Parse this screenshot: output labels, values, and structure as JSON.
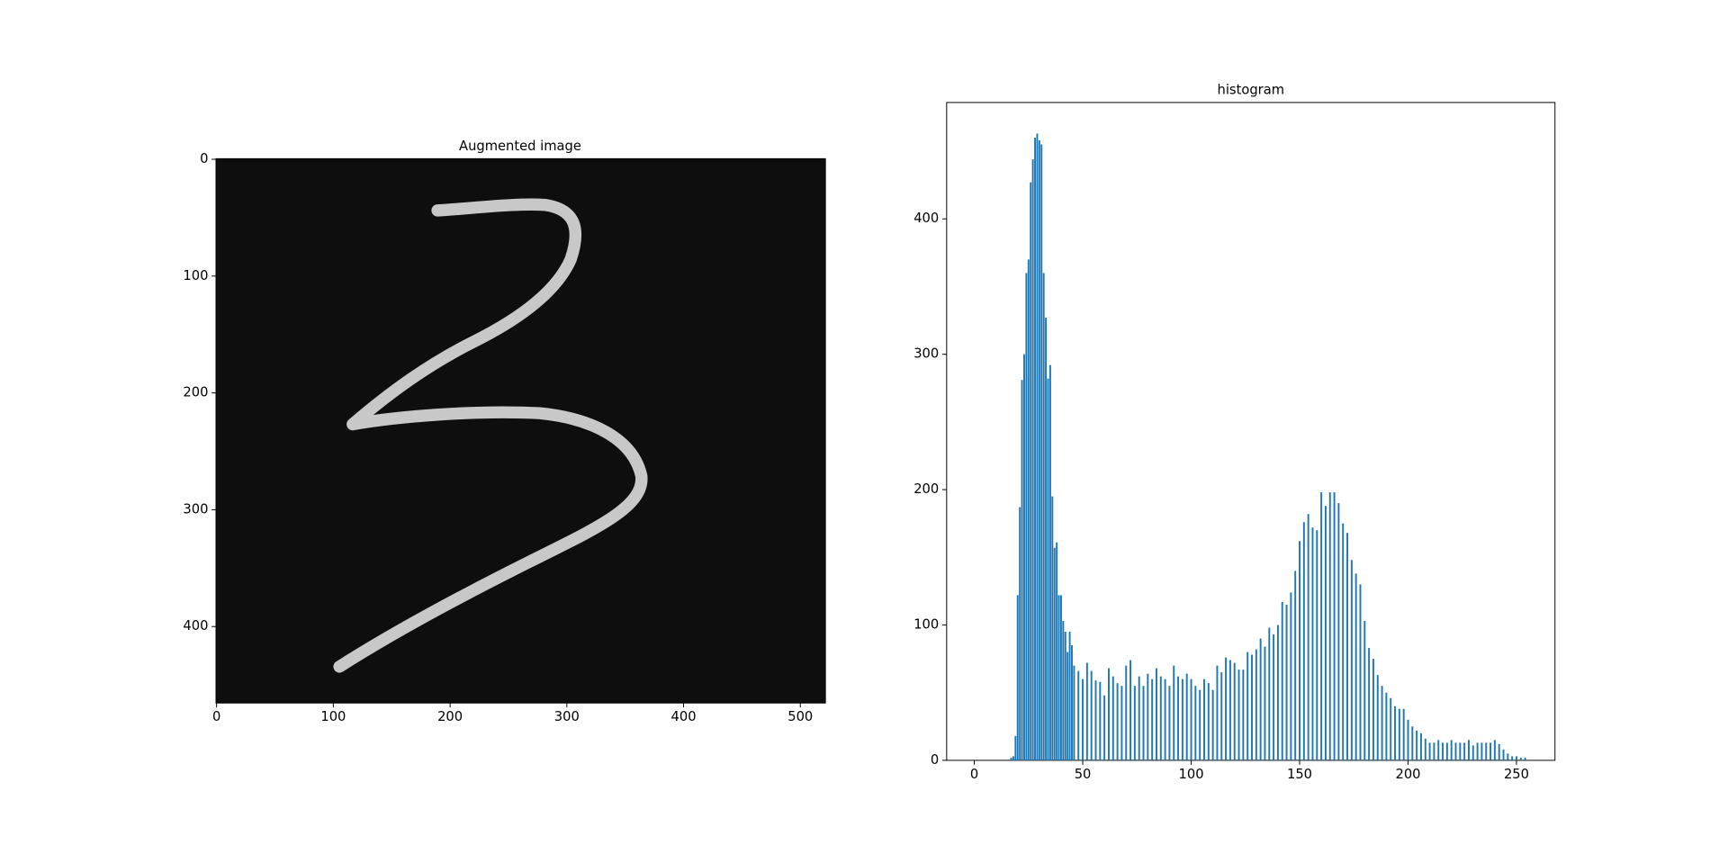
{
  "chart_data": [
    {
      "type": "image",
      "title": "Augmented image",
      "xlim": [
        -0.5,
        521.5
      ],
      "ylim": [
        465.5,
        -0.5
      ],
      "xticks": [
        0,
        100,
        200,
        300,
        400,
        500
      ],
      "yticks": [
        0,
        100,
        200,
        300,
        400
      ]
    },
    {
      "type": "bar",
      "title": "histogram",
      "color": "#1f77b4",
      "x": [
        17,
        18,
        19,
        20,
        21,
        22,
        23,
        24,
        25,
        26,
        27,
        28,
        29,
        30,
        31,
        32,
        33,
        34,
        35,
        36,
        37,
        38,
        39,
        40,
        41,
        42,
        43,
        44,
        45,
        46,
        48,
        50,
        52,
        54,
        56,
        58,
        60,
        62,
        64,
        66,
        68,
        70,
        72,
        74,
        76,
        78,
        80,
        82,
        84,
        86,
        88,
        90,
        92,
        94,
        96,
        98,
        100,
        102,
        104,
        106,
        108,
        110,
        112,
        114,
        116,
        118,
        120,
        122,
        124,
        126,
        128,
        130,
        132,
        134,
        136,
        138,
        140,
        142,
        144,
        146,
        148,
        150,
        152,
        154,
        156,
        158,
        160,
        162,
        164,
        166,
        168,
        170,
        172,
        174,
        176,
        178,
        180,
        182,
        184,
        186,
        188,
        190,
        192,
        194,
        196,
        198,
        200,
        202,
        204,
        206,
        208,
        210,
        212,
        214,
        216,
        218,
        220,
        222,
        224,
        226,
        228,
        230,
        232,
        234,
        236,
        238,
        240,
        242,
        244,
        246,
        248,
        250,
        252,
        254
      ],
      "values": [
        2,
        3,
        18,
        122,
        187,
        281,
        300,
        360,
        370,
        427,
        444,
        460,
        463,
        458,
        455,
        360,
        327,
        282,
        292,
        195,
        157,
        161,
        122,
        122,
        103,
        95,
        80,
        95,
        85,
        70,
        66,
        60,
        72,
        66,
        59,
        58,
        48,
        68,
        62,
        57,
        55,
        70,
        74,
        55,
        62,
        55,
        64,
        60,
        68,
        62,
        60,
        55,
        70,
        62,
        60,
        64,
        60,
        55,
        52,
        60,
        57,
        52,
        70,
        65,
        76,
        74,
        72,
        67,
        67,
        80,
        78,
        82,
        90,
        84,
        98,
        93,
        100,
        117,
        115,
        124,
        140,
        162,
        176,
        182,
        172,
        170,
        198,
        188,
        198,
        198,
        190,
        175,
        168,
        148,
        138,
        130,
        103,
        83,
        75,
        63,
        55,
        50,
        46,
        40,
        38,
        38,
        30,
        25,
        22,
        20,
        16,
        13,
        13,
        15,
        13,
        13,
        15,
        13,
        13,
        13,
        15,
        11,
        13,
        13,
        13,
        13,
        15,
        12,
        8,
        5,
        3,
        3,
        2,
        2
      ],
      "xlim": [
        -12.75,
        267.75
      ],
      "ylim": [
        0,
        486
      ],
      "xticks": [
        0,
        50,
        100,
        150,
        200,
        250
      ],
      "yticks": [
        0,
        100,
        200,
        300,
        400
      ]
    }
  ]
}
